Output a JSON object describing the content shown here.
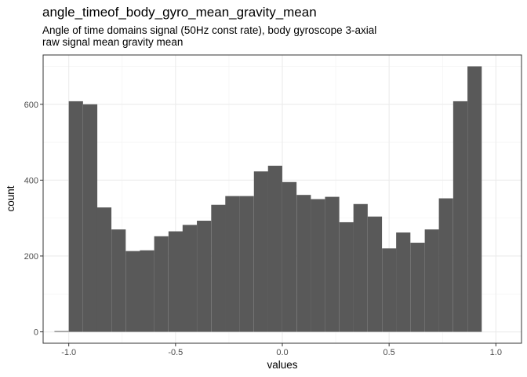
{
  "chart_data": {
    "type": "bar",
    "title": "angle_timeof_body_gyro_mean_gravity_mean",
    "subtitle_lines": [
      "Angle of time domains signal (50Hz const rate), body gyroscope 3-axial",
      "raw signal mean gravity mean"
    ],
    "xlabel": "values",
    "ylabel": "count",
    "xlim": [
      -1.12,
      1.12
    ],
    "ylim": [
      -30,
      730
    ],
    "x_ticks": [
      -1.0,
      -0.5,
      0.0,
      0.5,
      1.0
    ],
    "x_tick_labels": [
      "-1.0",
      "-0.5",
      "0.0",
      "0.5",
      "1.0"
    ],
    "y_ticks": [
      0,
      200,
      400,
      600
    ],
    "y_tick_labels": [
      "0",
      "200",
      "400",
      "600"
    ],
    "grid": true,
    "bin_width": 0.0667,
    "bin_starts": [
      -1.067,
      -1.0,
      -0.933,
      -0.867,
      -0.8,
      -0.733,
      -0.667,
      -0.6,
      -0.533,
      -0.467,
      -0.4,
      -0.333,
      -0.267,
      -0.2,
      -0.133,
      -0.067,
      0.0,
      0.067,
      0.133,
      0.2,
      0.267,
      0.333,
      0.4,
      0.467,
      0.533,
      0.6,
      0.667,
      0.733,
      0.8,
      0.867,
      0.933
    ],
    "values": [
      2,
      608,
      600,
      328,
      270,
      213,
      215,
      252,
      265,
      282,
      293,
      335,
      358,
      358,
      423,
      438,
      395,
      361,
      350,
      356,
      289,
      337,
      304,
      220,
      262,
      235,
      270,
      352,
      608,
      700,
      0
    ],
    "bar_color": "#595959"
  }
}
